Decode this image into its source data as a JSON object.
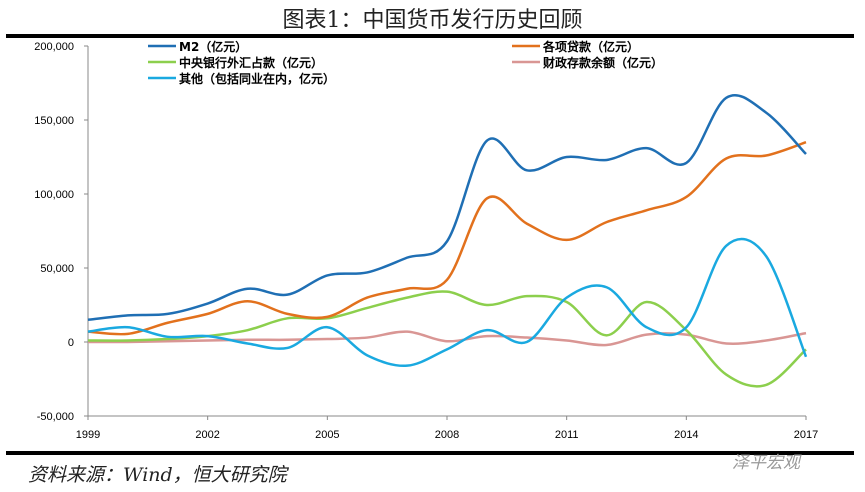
{
  "title": "图表1：中国货币发行历史回顾",
  "source": "资料来源：Wind，恒大研究院",
  "watermark": "泽平宏观",
  "chart_data": {
    "type": "line",
    "title": "图表1：中国货币发行历史回顾",
    "x": [
      1999,
      2000,
      2001,
      2002,
      2003,
      2004,
      2005,
      2006,
      2007,
      2008,
      2009,
      2010,
      2011,
      2012,
      2013,
      2014,
      2015,
      2016,
      2017
    ],
    "xticks": [
      "1999",
      "2002",
      "2005",
      "2008",
      "2011",
      "2014",
      "2017"
    ],
    "yticks": [
      "200,000",
      "150,000",
      "100,000",
      "50,000",
      "0",
      "-50,000"
    ],
    "ylim": [
      -50000,
      200000
    ],
    "legend_position": "top",
    "series": [
      {
        "name": "M2（亿元）",
        "color": "#1f6fb4",
        "values": [
          15000,
          18000,
          19000,
          26000,
          36000,
          32000,
          45000,
          47000,
          57000,
          68000,
          136000,
          116000,
          125000,
          123000,
          131000,
          121000,
          165000,
          155000,
          127000
        ]
      },
      {
        "name": "各项贷款（亿元）",
        "color": "#e2711d",
        "values": [
          7000,
          5500,
          13000,
          19000,
          27500,
          19000,
          17000,
          30000,
          36000,
          42000,
          97000,
          80000,
          69000,
          81000,
          89000,
          98000,
          124000,
          126000,
          135000
        ]
      },
      {
        "name": "中央银行外汇占款（亿元）",
        "color": "#8ccf4d",
        "values": [
          1000,
          1000,
          2000,
          4000,
          8000,
          16000,
          16000,
          23000,
          30000,
          34000,
          25000,
          31000,
          27000,
          4500,
          27000,
          8000,
          -22000,
          -29000,
          -5000
        ]
      },
      {
        "name": "财政存款余额（亿元）",
        "color": "#d99694",
        "values": [
          0,
          0,
          500,
          1000,
          1500,
          1500,
          2000,
          3000,
          7000,
          500,
          4000,
          3000,
          1000,
          -2000,
          5000,
          5000,
          -1000,
          1000,
          6000
        ]
      },
      {
        "name": "其他（包括同业在内，亿元）",
        "color": "#1aa9e0",
        "values": [
          7000,
          10000,
          3500,
          4000,
          -1000,
          -4000,
          10000,
          -9000,
          -16000,
          -5000,
          8000,
          0,
          30000,
          37000,
          10000,
          10000,
          65000,
          58000,
          -10000
        ]
      }
    ]
  }
}
